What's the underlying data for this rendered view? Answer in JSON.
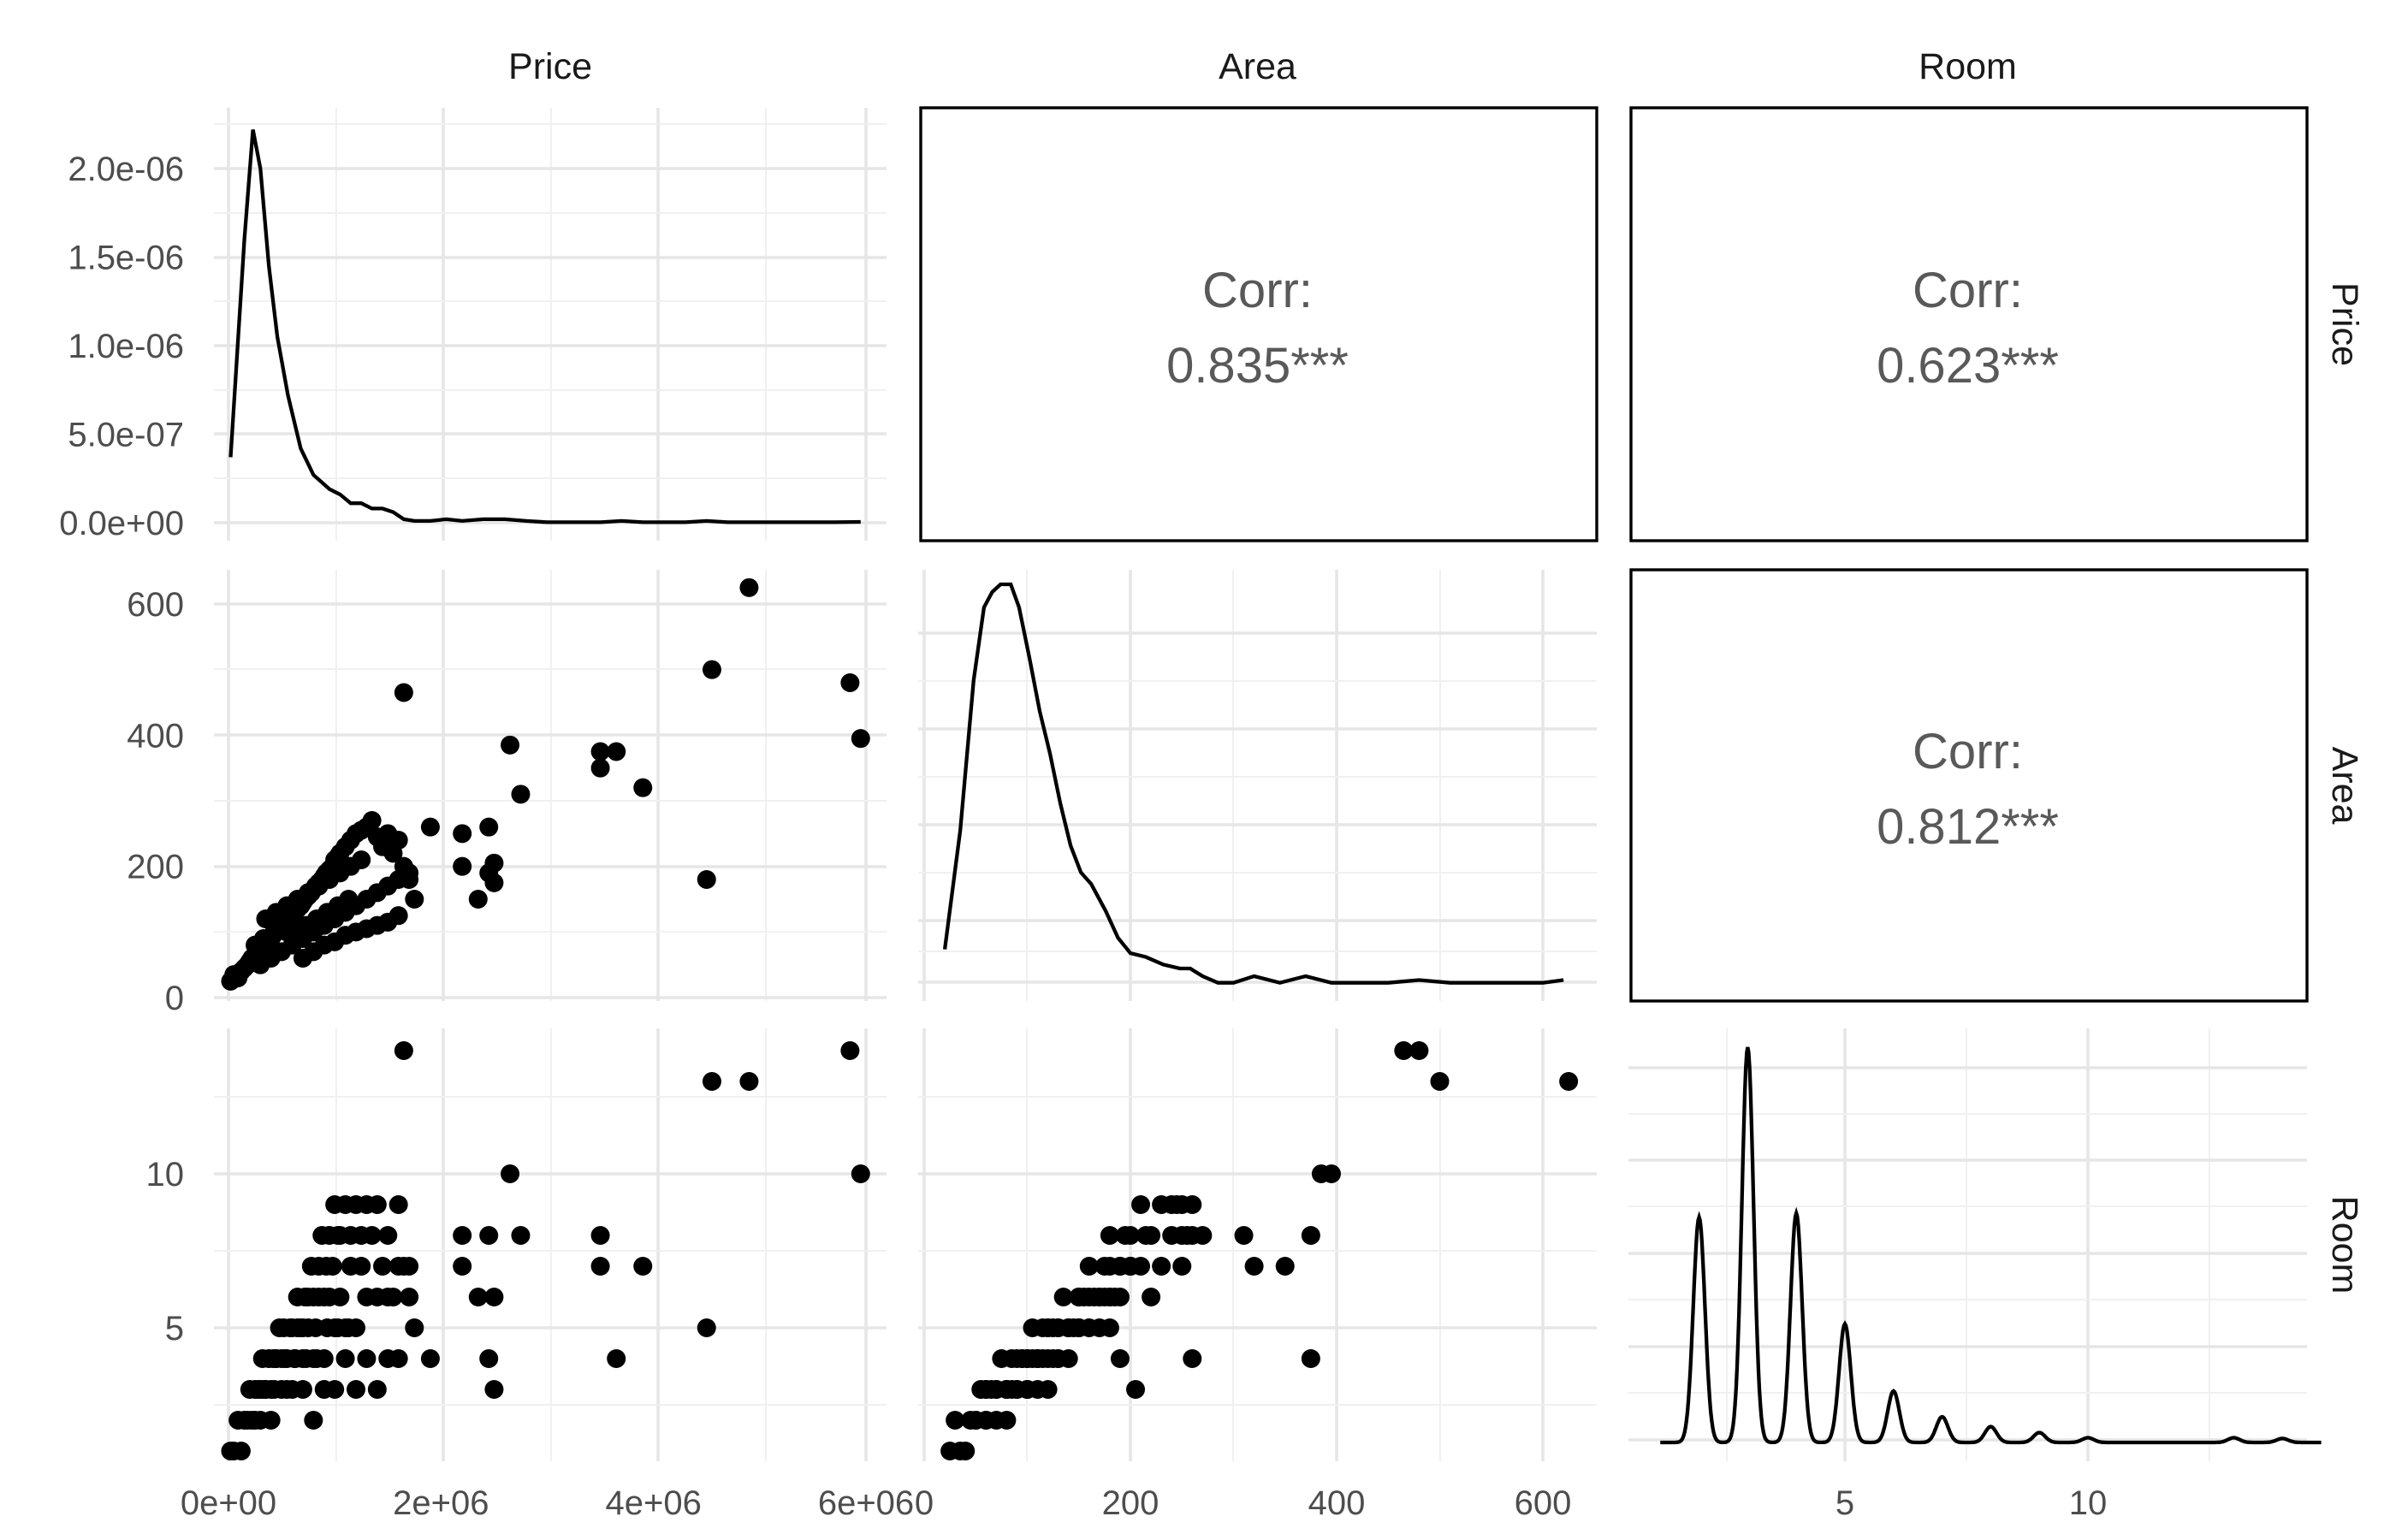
{
  "chart_data": {
    "type": "scatterplot_matrix",
    "variables": [
      "Price",
      "Area",
      "Room"
    ],
    "axes": {
      "Price": {
        "ticks": [
          0,
          2000000,
          4000000,
          6000000
        ],
        "tick_labels": [
          "0e+00",
          "2e+06",
          "4e+06",
          "6e+06"
        ]
      },
      "Area": {
        "ticks": [
          0,
          200,
          400,
          600
        ],
        "tick_labels": [
          "0",
          "200",
          "400",
          "600"
        ]
      },
      "Room": {
        "ticks": [
          5,
          10
        ],
        "tick_labels": [
          "5",
          "10"
        ]
      },
      "density_Price": {
        "ticks": [
          0,
          5e-07,
          1e-06,
          1.5e-06,
          2e-06
        ],
        "tick_labels": [
          "0.0e+00",
          "5.0e-07",
          "1.0e-06",
          "1.5e-06",
          "2.0e-06"
        ]
      }
    },
    "correlations": [
      {
        "row": "Price",
        "col": "Area",
        "label": "Corr:",
        "value": "0.835***"
      },
      {
        "row": "Price",
        "col": "Room",
        "label": "Corr:",
        "value": "0.623***"
      },
      {
        "row": "Area",
        "col": "Room",
        "label": "Corr:",
        "value": "0.812***"
      }
    ],
    "densities": {
      "Price": {
        "x": [
          20000,
          150000,
          230000,
          300000,
          380000,
          460000,
          560000,
          680000,
          800000,
          950000,
          1050000,
          1150000,
          1250000,
          1350000,
          1450000,
          1550000,
          1650000,
          1750000,
          1900000,
          2050000,
          2200000,
          2400000,
          2600000,
          2800000,
          3000000,
          3200000,
          3500000,
          3700000,
          3900000,
          4100000,
          4300000,
          4500000,
          4700000,
          4900000,
          5100000,
          5300000,
          5500000,
          5700000,
          5950000
        ],
        "y": [
          3.7e-07,
          1.6e-06,
          2.22e-06,
          2e-06,
          1.45e-06,
          1.05e-06,
          7.2e-07,
          4.2e-07,
          2.7e-07,
          1.9e-07,
          1.6e-07,
          1.1e-07,
          1.1e-07,
          8e-08,
          8e-08,
          6e-08,
          2e-08,
          1e-08,
          1e-08,
          2e-08,
          1e-08,
          2e-08,
          2e-08,
          1e-08,
          3e-09,
          3e-09,
          3e-09,
          1e-08,
          3e-09,
          3e-09,
          3e-09,
          1e-08,
          3e-09,
          3e-09,
          3e-09,
          3e-09,
          3e-09,
          3e-09,
          5e-09
        ]
      },
      "Area": {
        "x": [
          20,
          35,
          48,
          58,
          66,
          74,
          84,
          92,
          102,
          112,
          122,
          132,
          142,
          152,
          162,
          176,
          188,
          200,
          215,
          232,
          248,
          258,
          270,
          285,
          300,
          320,
          345,
          370,
          395,
          420,
          450,
          480,
          510,
          540,
          570,
          600,
          620
        ],
        "y": [
          0.0009,
          0.004,
          0.0079,
          0.0098,
          0.0102,
          0.0104,
          0.0104,
          0.0098,
          0.0085,
          0.0071,
          0.006,
          0.0047,
          0.0036,
          0.0029,
          0.0026,
          0.0019,
          0.0012,
          0.0008,
          0.0007,
          0.0005,
          0.0004,
          0.0004,
          0.0002,
          3e-05,
          3e-05,
          0.0002,
          3e-05,
          0.0002,
          3e-05,
          3e-05,
          3e-05,
          0.0001,
          3e-05,
          3e-05,
          3e-05,
          3e-05,
          0.0001
        ],
        "relative_scale": true
      },
      "Room": {
        "peaks": [
          {
            "x": 2,
            "height": 0.57
          },
          {
            "x": 3,
            "height": 1.0
          },
          {
            "x": 4,
            "height": 0.58
          },
          {
            "x": 5,
            "height": 0.3
          },
          {
            "x": 6,
            "height": 0.13
          },
          {
            "x": 7,
            "height": 0.065
          },
          {
            "x": 8,
            "height": 0.04
          },
          {
            "x": 9,
            "height": 0.025
          },
          {
            "x": 10,
            "height": 0.012
          },
          {
            "x": 13,
            "height": 0.012
          },
          {
            "x": 14,
            "height": 0.01
          }
        ],
        "x_range": [
          1.2,
          14.8
        ],
        "relative_scale": true
      }
    },
    "data_points": [
      [
        20000,
        25,
        1
      ],
      [
        50000,
        35,
        1
      ],
      [
        90000,
        30,
        2
      ],
      [
        120000,
        40,
        1
      ],
      [
        150000,
        45,
        2
      ],
      [
        180000,
        50,
        2
      ],
      [
        200000,
        55,
        3
      ],
      [
        220000,
        60,
        2
      ],
      [
        250000,
        65,
        3
      ],
      [
        280000,
        60,
        3
      ],
      [
        300000,
        70,
        3
      ],
      [
        320000,
        75,
        4
      ],
      [
        350000,
        80,
        3
      ],
      [
        380000,
        85,
        4
      ],
      [
        400000,
        90,
        3
      ],
      [
        420000,
        95,
        4
      ],
      [
        450000,
        100,
        4
      ],
      [
        480000,
        105,
        5
      ],
      [
        500000,
        110,
        4
      ],
      [
        520000,
        115,
        5
      ],
      [
        550000,
        100,
        3
      ],
      [
        580000,
        120,
        5
      ],
      [
        600000,
        125,
        5
      ],
      [
        620000,
        130,
        4
      ],
      [
        650000,
        135,
        6
      ],
      [
        680000,
        140,
        5
      ],
      [
        700000,
        145,
        5
      ],
      [
        720000,
        150,
        6
      ],
      [
        750000,
        155,
        6
      ],
      [
        780000,
        160,
        7
      ],
      [
        800000,
        165,
        6
      ],
      [
        820000,
        170,
        5
      ],
      [
        850000,
        175,
        7
      ],
      [
        880000,
        180,
        8
      ],
      [
        900000,
        185,
        6
      ],
      [
        920000,
        190,
        7
      ],
      [
        950000,
        195,
        8
      ],
      [
        980000,
        200,
        7
      ],
      [
        1000000,
        210,
        9
      ],
      [
        1030000,
        215,
        8
      ],
      [
        1050000,
        220,
        8
      ],
      [
        1100000,
        230,
        9
      ],
      [
        1150000,
        240,
        8
      ],
      [
        1200000,
        250,
        9
      ],
      [
        1250000,
        255,
        8
      ],
      [
        1300000,
        260,
        9
      ],
      [
        1350000,
        270,
        8
      ],
      [
        1400000,
        245,
        9
      ],
      [
        1450000,
        230,
        7
      ],
      [
        1500000,
        250,
        8
      ],
      [
        1550000,
        220,
        6
      ],
      [
        1600000,
        240,
        9
      ],
      [
        1650000,
        200,
        7
      ],
      [
        1700000,
        180,
        6
      ],
      [
        1750000,
        150,
        5
      ],
      [
        300000,
        50,
        2
      ],
      [
        400000,
        60,
        2
      ],
      [
        500000,
        70,
        3
      ],
      [
        600000,
        80,
        3
      ],
      [
        700000,
        90,
        4
      ],
      [
        800000,
        100,
        4
      ],
      [
        900000,
        110,
        4
      ],
      [
        1000000,
        120,
        5
      ],
      [
        1100000,
        130,
        5
      ],
      [
        1200000,
        140,
        5
      ],
      [
        1300000,
        150,
        6
      ],
      [
        1400000,
        160,
        6
      ],
      [
        1500000,
        170,
        6
      ],
      [
        1600000,
        180,
        7
      ],
      [
        1700000,
        190,
        7
      ],
      [
        350000,
        120,
        3
      ],
      [
        450000,
        130,
        4
      ],
      [
        550000,
        140,
        4
      ],
      [
        650000,
        150,
        5
      ],
      [
        750000,
        160,
        5
      ],
      [
        850000,
        170,
        6
      ],
      [
        950000,
        180,
        6
      ],
      [
        1050000,
        190,
        6
      ],
      [
        1150000,
        200,
        7
      ],
      [
        1250000,
        210,
        7
      ],
      [
        250000,
        80,
        2
      ],
      [
        330000,
        90,
        3
      ],
      [
        430000,
        100,
        3
      ],
      [
        530000,
        110,
        4
      ],
      [
        630000,
        100,
        4
      ],
      [
        730000,
        110,
        4
      ],
      [
        830000,
        120,
        4
      ],
      [
        930000,
        130,
        5
      ],
      [
        1030000,
        140,
        5
      ],
      [
        1130000,
        150,
        5
      ],
      [
        700000,
        60,
        3
      ],
      [
        900000,
        80,
        3
      ],
      [
        1100000,
        95,
        4
      ],
      [
        1300000,
        105,
        4
      ],
      [
        1500000,
        115,
        4
      ],
      [
        800000,
        70,
        2
      ],
      [
        1000000,
        85,
        3
      ],
      [
        1200000,
        100,
        3
      ],
      [
        1400000,
        110,
        3
      ],
      [
        1600000,
        125,
        4
      ],
      [
        1650000,
        465,
        14
      ],
      [
        1900000,
        260,
        4
      ],
      [
        2200000,
        250,
        7
      ],
      [
        2200000,
        200,
        8
      ],
      [
        2350000,
        150,
        6
      ],
      [
        2450000,
        260,
        8
      ],
      [
        2450000,
        190,
        4
      ],
      [
        2500000,
        205,
        3
      ],
      [
        2500000,
        175,
        6
      ],
      [
        2650000,
        385,
        10
      ],
      [
        2750000,
        310,
        8
      ],
      [
        3500000,
        375,
        8
      ],
      [
        3500000,
        350,
        7
      ],
      [
        3650000,
        375,
        4
      ],
      [
        3900000,
        320,
        7
      ],
      [
        4500000,
        180,
        5
      ],
      [
        4550000,
        500,
        13
      ],
      [
        4900000,
        625,
        13
      ],
      [
        5850000,
        480,
        14
      ],
      [
        5950000,
        395,
        10
      ]
    ]
  }
}
